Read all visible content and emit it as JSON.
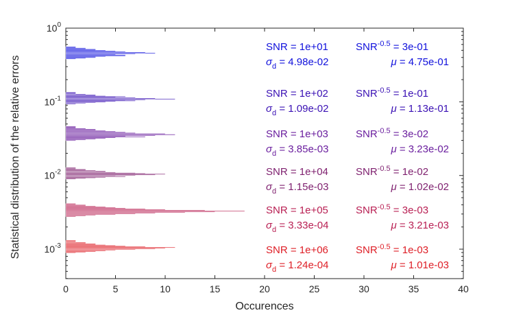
{
  "chart_data": {
    "type": "horizontal-histogram",
    "title": "",
    "xlabel": "Occurences",
    "ylabel": "Statistical distribution of the relative errors",
    "xlim": [
      0,
      40
    ],
    "ylim_log10": [
      -3.4,
      0
    ],
    "y_scale": "log",
    "x_ticks": [
      "0",
      "5",
      "10",
      "15",
      "20",
      "25",
      "30",
      "35",
      "40"
    ],
    "y_ticks": [
      {
        "base": "10",
        "exp": "0"
      },
      {
        "base": "10",
        "exp": "-1"
      },
      {
        "base": "10",
        "exp": "-2"
      },
      {
        "base": "10",
        "exp": "-3"
      }
    ],
    "grid": false,
    "series": [
      {
        "color": "#1010dc",
        "snr": "1e+01",
        "snr_pow": "3e-01",
        "sigma": "4.98e-02",
        "mu": "4.75e-01",
        "bin_edges_log10": [
          -0.42,
          -0.25
        ],
        "counts": [
          1,
          2,
          3,
          3,
          4,
          6,
          6,
          5,
          7,
          9,
          8,
          6,
          5,
          4,
          3,
          3,
          2,
          2,
          1,
          1
        ]
      },
      {
        "color": "#3a10b4",
        "snr": "1e+02",
        "snr_pow": "1e-01",
        "sigma": "1.09e-02",
        "mu": "1.13e-01",
        "bin_edges_log10": [
          -1.03,
          -0.87
        ],
        "counts": [
          1,
          2,
          3,
          4,
          5,
          7,
          6,
          8,
          11,
          9,
          7,
          5,
          6,
          4,
          3,
          3,
          2,
          1,
          1,
          1
        ]
      },
      {
        "color": "#6a1e9e",
        "snr": "1e+03",
        "snr_pow": "3e-02",
        "sigma": "3.85e-03",
        "mu": "3.23e-02",
        "bin_edges_log10": [
          -1.53,
          -1.33
        ],
        "counts": [
          1,
          2,
          3,
          4,
          5,
          8,
          6,
          9,
          11,
          10,
          7,
          6,
          5,
          4,
          3,
          3,
          2,
          1,
          1,
          1
        ]
      },
      {
        "color": "#7e1f6e",
        "snr": "1e+04",
        "snr_pow": "1e-02",
        "sigma": "1.15e-03",
        "mu": "1.02e-02",
        "bin_edges_log10": [
          -2.05,
          -1.89
        ],
        "counts": [
          1,
          2,
          3,
          4,
          6,
          5,
          7,
          9,
          10,
          8,
          7,
          5,
          4,
          4,
          3,
          2,
          2,
          1,
          1,
          1
        ]
      },
      {
        "color": "#b81e52",
        "snr": "1e+05",
        "snr_pow": "3e-03",
        "sigma": "3.33e-04",
        "mu": "3.21e-03",
        "bin_edges_log10": [
          -2.56,
          -2.38
        ],
        "counts": [
          1,
          2,
          3,
          5,
          7,
          9,
          12,
          15,
          18,
          14,
          10,
          8,
          6,
          5,
          4,
          3,
          2,
          2,
          1,
          1
        ]
      },
      {
        "color": "#de1e26",
        "snr": "1e+06",
        "snr_pow": "1e-03",
        "sigma": "1.24e-04",
        "mu": "1.01e-03",
        "bin_edges_log10": [
          -3.05,
          -2.88
        ],
        "counts": [
          1,
          2,
          3,
          4,
          5,
          7,
          9,
          10,
          11,
          8,
          6,
          5,
          4,
          3,
          3,
          2,
          2,
          1,
          1,
          1
        ]
      }
    ],
    "annotation_labels": {
      "snr": "SNR = ",
      "snr_base": "SNR",
      "snr_exp": "-0.5",
      "eq": " = ",
      "sigma_symbol": "σ",
      "sigma_sub": "d",
      "mu_symbol": "μ"
    }
  }
}
